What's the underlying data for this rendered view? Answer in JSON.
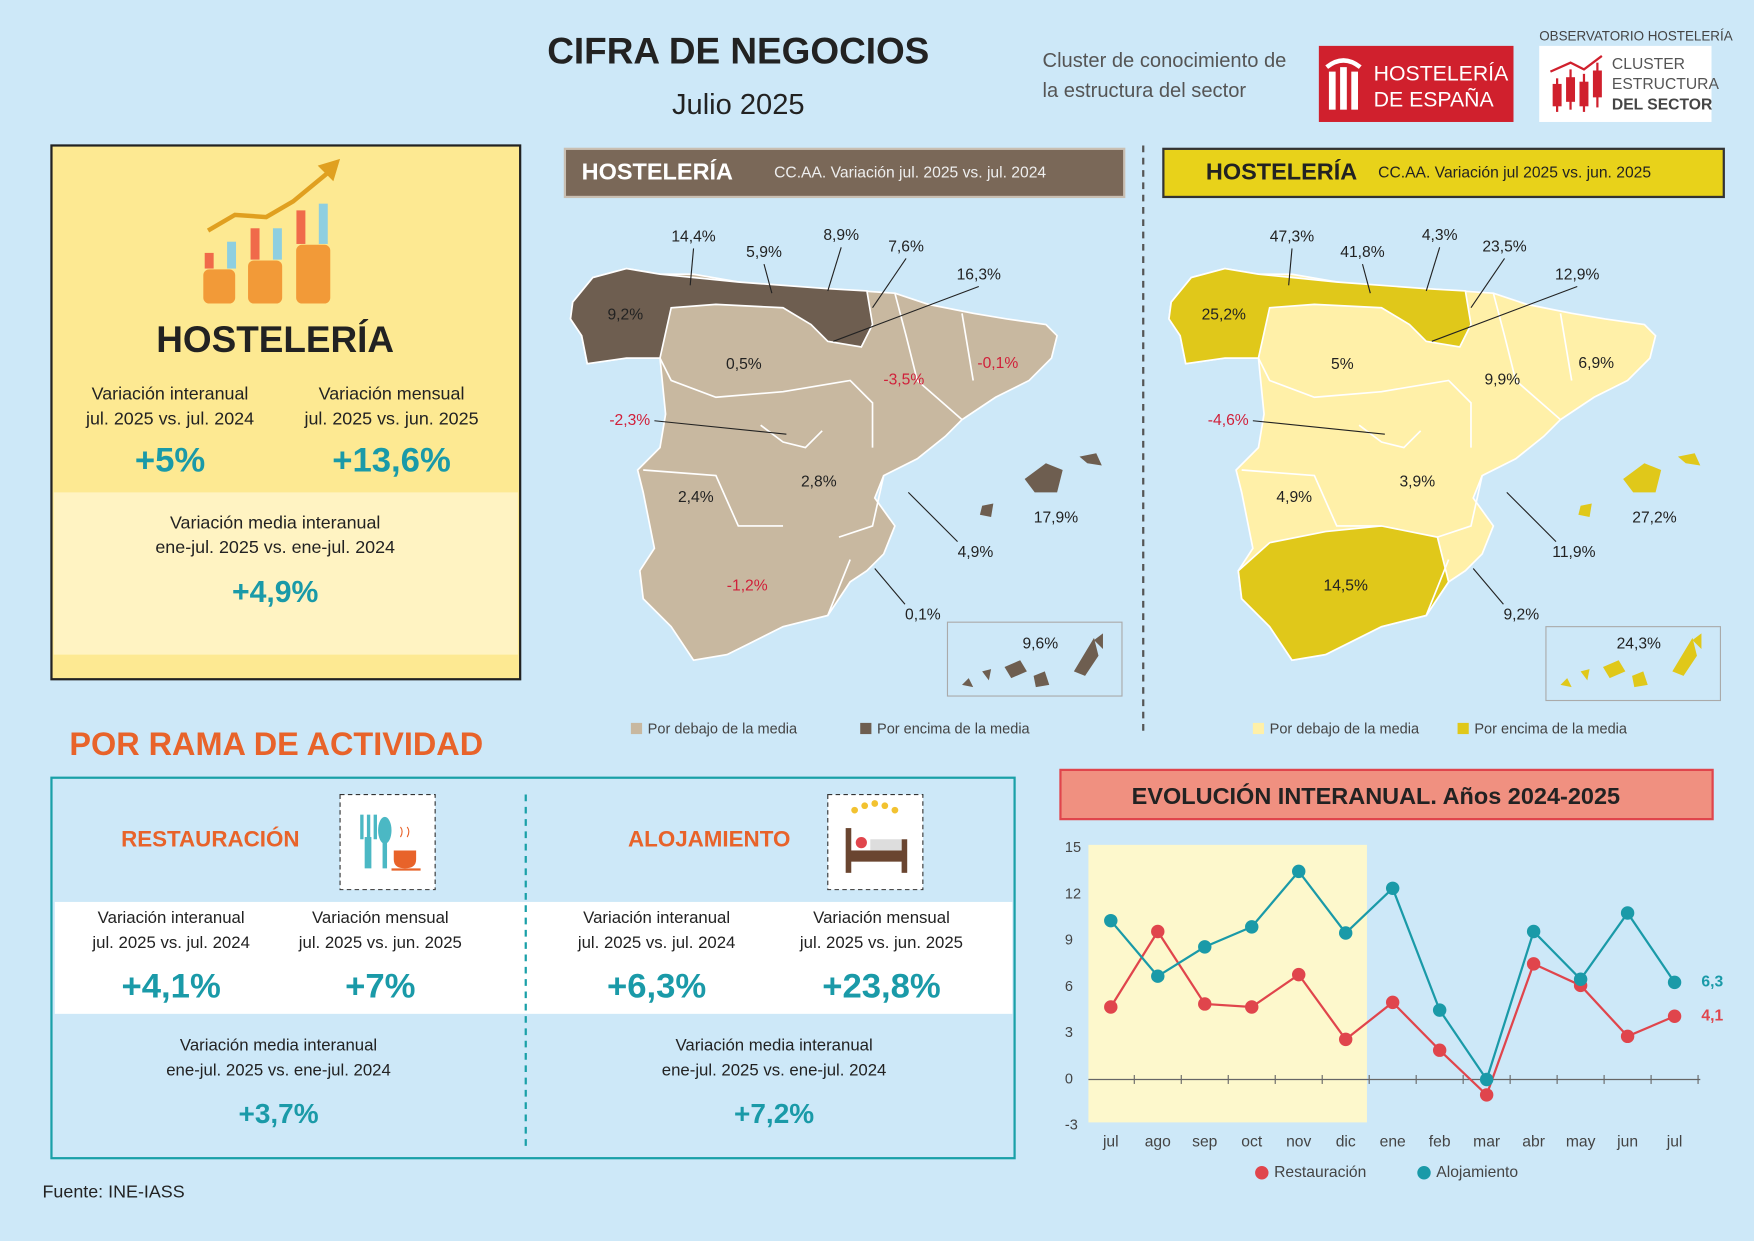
{
  "header": {
    "title": "CIFRA DE NEGOCIOS",
    "subtitle": "Julio 2025",
    "cluster_text": [
      "Cluster de conocimiento de",
      "la estructura del sector"
    ],
    "logo1": [
      "HOSTELERÍA",
      "DE ESPAÑA"
    ],
    "logo2_top": "OBSERVATORIO HOSTELERÍA",
    "logo2": [
      "CLUSTER",
      "ESTRUCTURA",
      "DEL SECTOR"
    ]
  },
  "summary": {
    "title": "HOSTELERÍA",
    "interanual": {
      "label": "Variación interanual",
      "period": "jul. 2025 vs. jul. 2024",
      "value": "+5%"
    },
    "mensual": {
      "label": "Variación mensual",
      "period": "jul. 2025 vs. jun. 2025",
      "value": "+13,6%"
    },
    "media": {
      "label": "Variación media interanual",
      "period": "ene-jul. 2025 vs. ene-jul. 2024",
      "value": "+4,9%"
    }
  },
  "maps": [
    {
      "title": "HOSTELERÍA",
      "subtitle": "CC.AA. Variación jul. 2025 vs. jul. 2024",
      "values": [
        "9,2%",
        "14,4%",
        "5,9%",
        "8,9%",
        "7,6%",
        "16,3%",
        "0,5%",
        "-3,5%",
        "-0,1%",
        "-2,3%",
        "2,4%",
        "2,8%",
        "4,9%",
        "17,9%",
        "-1,2%",
        "0,1%",
        "9,6%"
      ],
      "legend": [
        "Por debajo de la media",
        "Por encima de la media"
      ]
    },
    {
      "title": "HOSTELERÍA",
      "subtitle": "CC.AA. Variación jul 2025 vs. jun. 2025",
      "values": [
        "25,2%",
        "47,3%",
        "41,8%",
        "4,3%",
        "23,5%",
        "12,9%",
        "5%",
        "9,9%",
        "6,9%",
        "-4,6%",
        "4,9%",
        "3,9%",
        "11,9%",
        "27,2%",
        "14,5%",
        "9,2%",
        "24,3%"
      ],
      "legend": [
        "Por debajo de la media",
        "Por encima de la media"
      ]
    }
  ],
  "activity": {
    "title": "POR RAMA DE ACTIVIDAD",
    "branches": [
      {
        "title": "RESTAURACIÓN",
        "interanual": {
          "label": "Variación interanual",
          "period": "jul. 2025 vs. jul. 2024",
          "value": "+4,1%"
        },
        "mensual": {
          "label": "Variación mensual",
          "period": "jul. 2025 vs. jun. 2025",
          "value": "+7%"
        },
        "media": {
          "label": "Variación media interanual",
          "period": "ene-jul. 2025 vs. ene-jul. 2024",
          "value": "+3,7%"
        }
      },
      {
        "title": "ALOJAMIENTO",
        "interanual": {
          "label": "Variación interanual",
          "period": "jul. 2025 vs. jul. 2024",
          "value": "+6,3%"
        },
        "mensual": {
          "label": "Variación mensual",
          "period": "jul. 2025 vs. jun. 2025",
          "value": "+23,8%"
        },
        "media": {
          "label": "Variación media interanual",
          "period": "ene-jul. 2025 vs. ene-jul. 2024",
          "value": "+7,2%"
        }
      }
    ]
  },
  "chart_data": {
    "type": "line",
    "title": "EVOLUCIÓN INTERANUAL. Años 2024-2025",
    "categories": [
      "jul",
      "ago",
      "sep",
      "oct",
      "nov",
      "dic",
      "ene",
      "feb",
      "mar",
      "abr",
      "may",
      "jun",
      "jul"
    ],
    "series": [
      {
        "name": "Restauración",
        "color": "#e0454c",
        "values": [
          4.7,
          9.6,
          4.9,
          4.7,
          6.8,
          2.6,
          5.0,
          1.9,
          -1.0,
          7.5,
          6.1,
          2.8,
          4.1
        ],
        "value_labels": [
          null,
          null,
          null,
          null,
          null,
          null,
          null,
          null,
          null,
          null,
          null,
          null,
          "4,1"
        ]
      },
      {
        "name": "Alojamiento",
        "color": "#1a9aa8",
        "values": [
          10.3,
          6.7,
          8.6,
          9.9,
          13.5,
          9.5,
          12.4,
          4.5,
          0.0,
          9.6,
          6.5,
          10.8,
          6.3
        ],
        "value_labels": [
          null,
          null,
          null,
          null,
          null,
          null,
          null,
          null,
          null,
          null,
          null,
          null,
          "6,3"
        ]
      }
    ],
    "ylim": [
      -3,
      15
    ],
    "yticks": [
      -3,
      0,
      3,
      6,
      9,
      12,
      15
    ],
    "grid": false,
    "legend": "bottom"
  },
  "source": "Fuente: INE-IASS"
}
